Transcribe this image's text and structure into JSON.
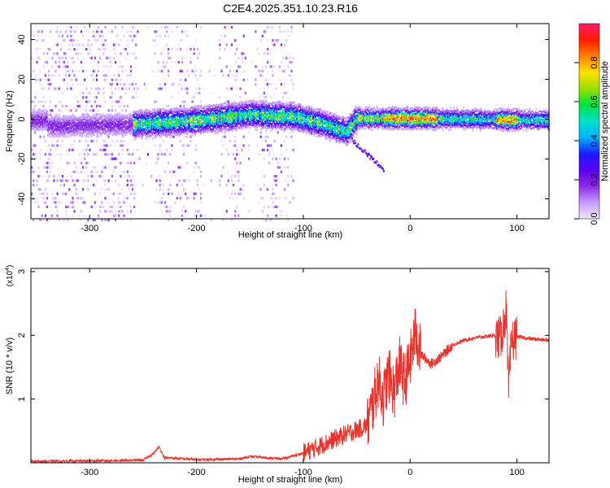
{
  "title": "C2E4.2025.351.10.23.R16",
  "chart_data": [
    {
      "type": "heatmap",
      "title": "C2E4.2025.351.10.23.R16",
      "xlabel": "Height of straight line (km)",
      "ylabel": "Frequency (Hz)",
      "xlim": [
        -355,
        130
      ],
      "ylim": [
        -50,
        48
      ],
      "xticks": [
        -300,
        -200,
        -100,
        0,
        100
      ],
      "yticks": [
        -40,
        -20,
        0,
        20,
        40
      ],
      "colorbar": {
        "label": "Normalized spectral amplitude",
        "ticks": [
          "0.0",
          "0.2",
          "0.4",
          "0.6",
          "0.8"
        ],
        "range": [
          0,
          1
        ],
        "colors": [
          "#f0e6ff",
          "#c59bff",
          "#8a2be2",
          "#5b00f0",
          "#1a1aff",
          "#00b4ff",
          "#00e0c8",
          "#00e040",
          "#9be000",
          "#ffe000",
          "#ff8000",
          "#ff1a00",
          "#ff1a6e"
        ]
      },
      "band": {
        "description_points": [
          {
            "x": -340,
            "f": -3
          },
          {
            "x": -260,
            "f": -2
          },
          {
            "x": -200,
            "f": 0
          },
          {
            "x": -150,
            "f": 3
          },
          {
            "x": -110,
            "f": 2
          },
          {
            "x": -80,
            "f": -2
          },
          {
            "x": -60,
            "f": -6
          },
          {
            "x": -50,
            "f": 1
          },
          {
            "x": 0,
            "f": 1
          },
          {
            "x": 130,
            "f": 0
          }
        ]
      }
    },
    {
      "type": "line",
      "xlabel": "Height of straight line (km)",
      "ylabel": "SNR (10 * v/v)",
      "yscale_label": "(x10",
      "yscale_exp": "4",
      "xlim": [
        -355,
        130
      ],
      "ylim": [
        0,
        3.05
      ],
      "xticks": [
        -300,
        -200,
        -100,
        0,
        100
      ],
      "yticks": [
        1,
        2,
        3
      ],
      "color": "#e8332d",
      "series": [
        {
          "x": [
            -355,
            -300,
            -250,
            -240,
            -235,
            -230,
            -200,
            -160,
            -150,
            -120,
            -100,
            -80,
            -60,
            -45,
            -40,
            -35,
            -30,
            -25,
            -20,
            -15,
            -10,
            -5,
            0,
            5,
            10,
            20,
            30,
            40,
            50,
            60,
            70,
            80,
            85,
            90,
            92,
            95,
            100,
            110,
            130
          ],
          "y": [
            0.02,
            0.03,
            0.04,
            0.15,
            0.25,
            0.08,
            0.05,
            0.06,
            0.1,
            0.06,
            0.15,
            0.3,
            0.45,
            0.55,
            0.6,
            0.9,
            1.3,
            1.0,
            1.4,
            1.1,
            1.55,
            1.25,
            1.6,
            2.05,
            1.7,
            1.55,
            1.68,
            1.85,
            1.92,
            1.96,
            1.98,
            2.0,
            1.95,
            2.4,
            1.1,
            1.9,
            1.98,
            1.95,
            1.92
          ]
        }
      ]
    }
  ]
}
